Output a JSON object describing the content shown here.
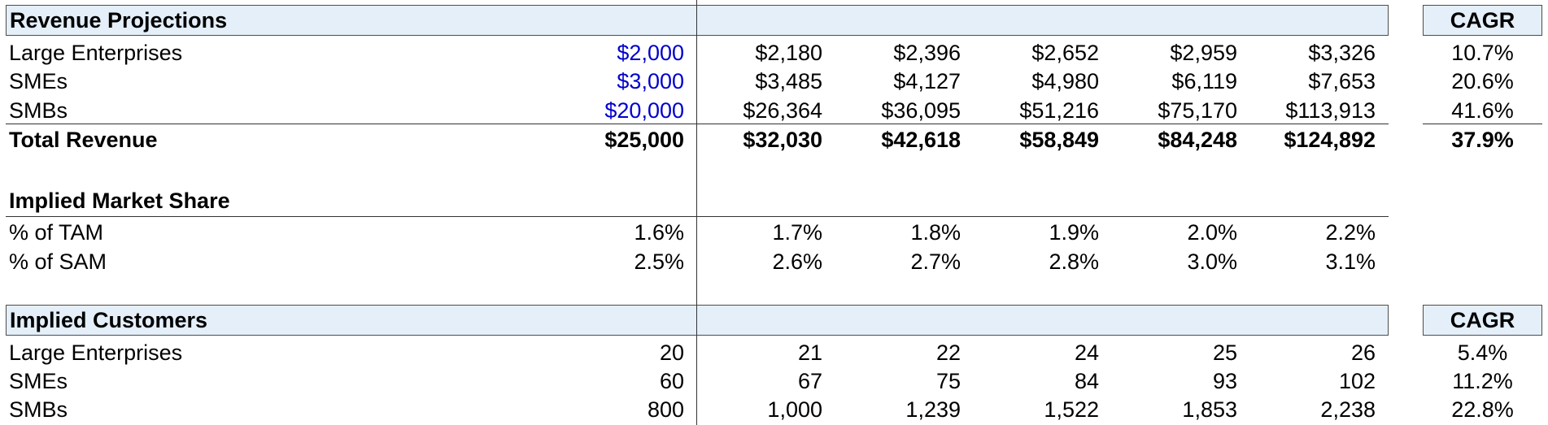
{
  "revenue": {
    "title": "Revenue Projections",
    "cagr_header": "CAGR",
    "rows": [
      {
        "label": "Large Enterprises",
        "base": "$2,000",
        "values": [
          "$2,180",
          "$2,396",
          "$2,652",
          "$2,959",
          "$3,326"
        ],
        "cagr": "10.7%"
      },
      {
        "label": "SMEs",
        "base": "$3,000",
        "values": [
          "$3,485",
          "$4,127",
          "$4,980",
          "$6,119",
          "$7,653"
        ],
        "cagr": "20.6%"
      },
      {
        "label": "SMBs",
        "base": "$20,000",
        "values": [
          "$26,364",
          "$36,095",
          "$51,216",
          "$75,170",
          "$113,913"
        ],
        "cagr": "41.6%"
      }
    ],
    "total": {
      "label": "Total Revenue",
      "base": "$25,000",
      "values": [
        "$32,030",
        "$42,618",
        "$58,849",
        "$84,248",
        "$124,892"
      ],
      "cagr": "37.9%"
    }
  },
  "market_share": {
    "title": "Implied Market Share",
    "rows": [
      {
        "label": "% of TAM",
        "base": "1.6%",
        "values": [
          "1.7%",
          "1.8%",
          "1.9%",
          "2.0%",
          "2.2%"
        ]
      },
      {
        "label": "% of SAM",
        "base": "2.5%",
        "values": [
          "2.6%",
          "2.7%",
          "2.8%",
          "3.0%",
          "3.1%"
        ]
      }
    ]
  },
  "customers": {
    "title": "Implied Customers",
    "cagr_header": "CAGR",
    "rows": [
      {
        "label": "Large Enterprises",
        "base": "20",
        "values": [
          "21",
          "22",
          "24",
          "25",
          "26"
        ],
        "cagr": "5.4%"
      },
      {
        "label": "SMEs",
        "base": "60",
        "values": [
          "67",
          "75",
          "84",
          "93",
          "102"
        ],
        "cagr": "11.2%"
      },
      {
        "label": "SMBs",
        "base": "800",
        "values": [
          "1,000",
          "1,239",
          "1,522",
          "1,853",
          "2,238"
        ],
        "cagr": "22.8%"
      }
    ]
  },
  "colors": {
    "header_fill": "#e4eff9",
    "input_blue": "#0000cc"
  }
}
